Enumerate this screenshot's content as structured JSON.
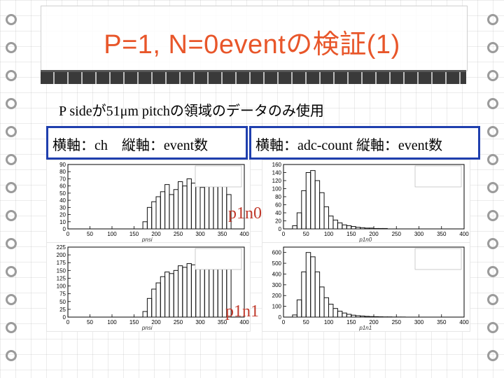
{
  "slide": {
    "title": "P=1, N=0eventの検証(1)",
    "note": "P sideが51μm pitchの領域のデータのみ使用",
    "axis_box_left": "横軸：ch　縦軸：event数",
    "axis_box_right": "横軸：adc-count 縦軸：event数",
    "label_top": "p1n0",
    "label_bottom": "p1n1"
  },
  "plots": {
    "top_left": {
      "xlabel": "pnsi",
      "x_ticks": [
        "0",
        "50",
        "100",
        "150",
        "200",
        "250",
        "300",
        "350",
        "400"
      ],
      "y_ticks": [
        "0",
        "10",
        "20",
        "30",
        "40",
        "50",
        "60",
        "70",
        "80",
        "90"
      ]
    },
    "top_right": {
      "xlabel": "p1n0",
      "x_ticks": [
        "0",
        "50",
        "100",
        "150",
        "200",
        "250",
        "300",
        "350",
        "400"
      ],
      "y_ticks": [
        "0",
        "20",
        "40",
        "60",
        "80",
        "100",
        "120",
        "140",
        "160"
      ]
    },
    "bottom_left": {
      "xlabel": "pnsi",
      "x_ticks": [
        "0",
        "50",
        "100",
        "150",
        "200",
        "250",
        "300",
        "350",
        "400"
      ],
      "y_ticks": [
        "0",
        "25",
        "50",
        "75",
        "100",
        "125",
        "150",
        "175",
        "200",
        "225"
      ]
    },
    "bottom_right": {
      "xlabel": "p1n1",
      "x_ticks": [
        "0",
        "50",
        "100",
        "150",
        "200",
        "250",
        "300",
        "350",
        "400"
      ],
      "y_ticks": [
        "0",
        "100",
        "200",
        "300",
        "400",
        "500",
        "600"
      ]
    }
  },
  "chart_data": [
    {
      "type": "bar",
      "x": [
        0,
        10,
        20,
        30,
        40,
        50,
        60,
        70,
        80,
        90,
        100,
        110,
        120,
        130,
        140,
        150,
        160,
        170,
        180,
        190,
        200,
        210,
        220,
        230,
        240,
        250,
        260,
        270,
        280,
        290,
        300,
        310,
        320,
        330,
        340,
        350,
        360,
        370,
        380,
        390
      ],
      "values": [
        0,
        0,
        0,
        0,
        0,
        0,
        0,
        0,
        0,
        0,
        0,
        0,
        0,
        0,
        0,
        0,
        0,
        10,
        30,
        38,
        45,
        52,
        62,
        48,
        55,
        66,
        60,
        70,
        64,
        72,
        58,
        62,
        66,
        60,
        70,
        62,
        48,
        0,
        0,
        0
      ],
      "xlim": [
        0,
        400
      ],
      "ylim": [
        0,
        90
      ],
      "xlabel": "pnsi"
    },
    {
      "type": "bar",
      "x": [
        0,
        10,
        20,
        30,
        40,
        50,
        60,
        70,
        80,
        90,
        100,
        110,
        120,
        130,
        140,
        150,
        160,
        170,
        180,
        190,
        200,
        210,
        220,
        230,
        240,
        250,
        260,
        270,
        280,
        290,
        300,
        310,
        320,
        330,
        340,
        350,
        360,
        370,
        380,
        390
      ],
      "values": [
        0,
        0,
        8,
        40,
        95,
        140,
        145,
        120,
        90,
        55,
        32,
        22,
        15,
        10,
        8,
        6,
        4,
        3,
        2,
        2,
        1,
        1,
        1,
        0,
        0,
        0,
        0,
        0,
        0,
        0,
        0,
        0,
        0,
        0,
        0,
        0,
        0,
        0,
        0,
        0
      ],
      "xlim": [
        0,
        400
      ],
      "ylim": [
        0,
        160
      ],
      "xlabel": "p1n0"
    },
    {
      "type": "bar",
      "x": [
        0,
        10,
        20,
        30,
        40,
        50,
        60,
        70,
        80,
        90,
        100,
        110,
        120,
        130,
        140,
        150,
        160,
        170,
        180,
        190,
        200,
        210,
        220,
        230,
        240,
        250,
        260,
        270,
        280,
        290,
        300,
        310,
        320,
        330,
        340,
        350,
        360,
        370,
        380,
        390
      ],
      "values": [
        0,
        0,
        0,
        0,
        0,
        0,
        0,
        0,
        0,
        0,
        0,
        0,
        0,
        0,
        0,
        0,
        0,
        18,
        60,
        90,
        110,
        130,
        145,
        140,
        150,
        165,
        160,
        172,
        168,
        178,
        170,
        175,
        180,
        176,
        190,
        182,
        210,
        0,
        0,
        0
      ],
      "xlim": [
        0,
        400
      ],
      "ylim": [
        0,
        225
      ],
      "xlabel": "pnsi"
    },
    {
      "type": "bar",
      "x": [
        0,
        10,
        20,
        30,
        40,
        50,
        60,
        70,
        80,
        90,
        100,
        110,
        120,
        130,
        140,
        150,
        160,
        170,
        180,
        190,
        200,
        210,
        220,
        230,
        240,
        250,
        260,
        270,
        280,
        290,
        300,
        310,
        320,
        330,
        340,
        350,
        360,
        370,
        380,
        390
      ],
      "values": [
        0,
        0,
        20,
        160,
        420,
        600,
        560,
        420,
        280,
        180,
        120,
        80,
        55,
        38,
        26,
        18,
        13,
        10,
        7,
        5,
        4,
        3,
        2,
        2,
        1,
        1,
        1,
        0,
        0,
        0,
        0,
        0,
        0,
        0,
        0,
        0,
        0,
        0,
        0,
        0
      ],
      "xlim": [
        0,
        400
      ],
      "ylim": [
        0,
        650
      ],
      "xlabel": "p1n1"
    }
  ]
}
